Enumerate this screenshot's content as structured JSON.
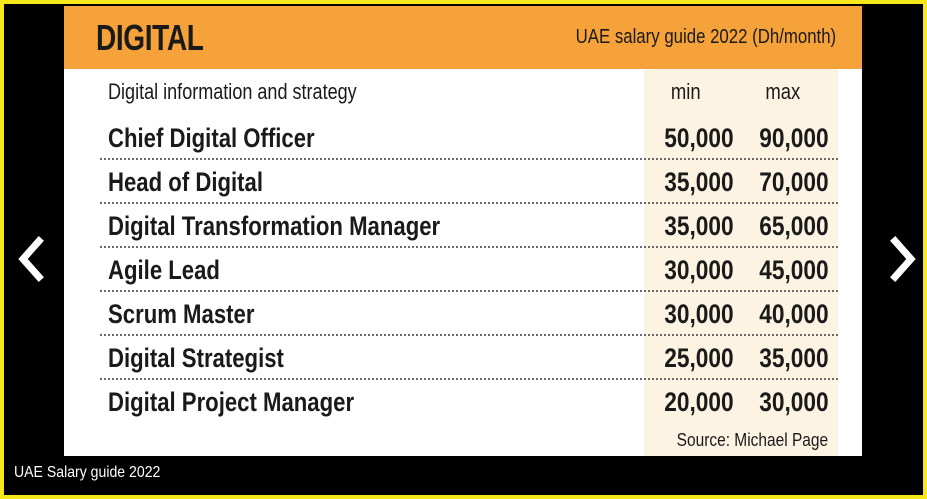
{
  "slide": {
    "title": "DIGITAL",
    "subtitle": "UAE salary guide 2022 (Dh/month)",
    "section_label": "Digital information and strategy",
    "columns": {
      "min": "min",
      "max": "max"
    },
    "rows": [
      {
        "role": "Chief Digital Officer",
        "min": "50,000",
        "max": "90,000"
      },
      {
        "role": "Head of Digital",
        "min": "35,000",
        "max": "70,000"
      },
      {
        "role": "Digital Transformation Manager",
        "min": "35,000",
        "max": "65,000"
      },
      {
        "role": "Agile Lead",
        "min": "30,000",
        "max": "45,000"
      },
      {
        "role": "Scrum Master",
        "min": "30,000",
        "max": "40,000"
      },
      {
        "role": "Digital Strategist",
        "min": "25,000",
        "max": "35,000"
      },
      {
        "role": "Digital Project Manager",
        "min": "20,000",
        "max": "30,000"
      }
    ],
    "source": "Source: Michael Page"
  },
  "caption": "UAE Salary guide 2022",
  "nav": {
    "prev_icon": "chevron-left-icon",
    "next_icon": "chevron-right-icon"
  },
  "colors": {
    "frame": "#f6e71a",
    "header": "#f6a23a",
    "value_panel": "#fdf3e3",
    "viewer_background": "#000000"
  }
}
